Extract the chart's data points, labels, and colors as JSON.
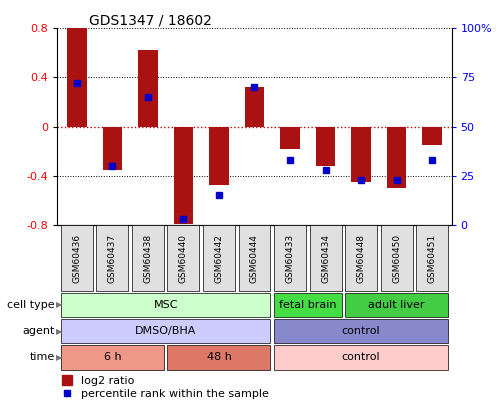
{
  "title": "GDS1347 / 18602",
  "samples": [
    "GSM60436",
    "GSM60437",
    "GSM60438",
    "GSM60440",
    "GSM60442",
    "GSM60444",
    "GSM60433",
    "GSM60434",
    "GSM60448",
    "GSM60450",
    "GSM60451"
  ],
  "log2_ratio": [
    0.8,
    -0.35,
    0.62,
    -0.79,
    -0.48,
    0.32,
    -0.18,
    -0.32,
    -0.45,
    -0.5,
    -0.15
  ],
  "percentile_rank": [
    72,
    30,
    65,
    3,
    15,
    70,
    33,
    28,
    23,
    23,
    33
  ],
  "ylim": [
    -0.8,
    0.8
  ],
  "y2lim": [
    0,
    100
  ],
  "yticks": [
    -0.8,
    -0.4,
    0.0,
    0.4,
    0.8
  ],
  "y2ticks": [
    0,
    25,
    50,
    75,
    100
  ],
  "y2ticklabels": [
    "0",
    "25",
    "50",
    "75",
    "100%"
  ],
  "bar_color": "#aa1111",
  "dot_color": "#0000cc",
  "zero_line_color": "#cc0000",
  "cell_type_data": [
    {
      "label": "MSC",
      "start": 0,
      "end": 6,
      "color": "#ccffcc"
    },
    {
      "label": "fetal brain",
      "start": 6,
      "end": 8,
      "color": "#44dd44"
    },
    {
      "label": "adult liver",
      "start": 8,
      "end": 11,
      "color": "#44cc44"
    }
  ],
  "agent_data": [
    {
      "label": "DMSO/BHA",
      "start": 0,
      "end": 6,
      "color": "#ccccff"
    },
    {
      "label": "control",
      "start": 6,
      "end": 11,
      "color": "#8888cc"
    }
  ],
  "time_data": [
    {
      "label": "6 h",
      "start": 0,
      "end": 3,
      "color": "#ee9988"
    },
    {
      "label": "48 h",
      "start": 3,
      "end": 6,
      "color": "#dd7766"
    },
    {
      "label": "control",
      "start": 6,
      "end": 11,
      "color": "#ffcccc"
    }
  ]
}
